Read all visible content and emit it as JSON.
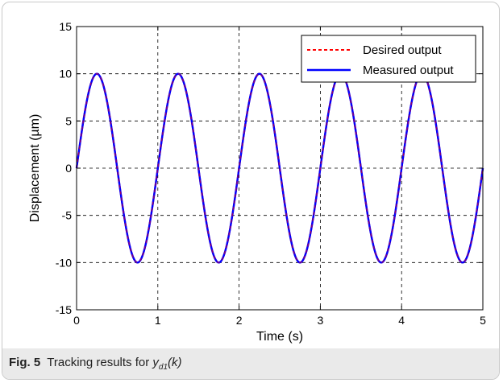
{
  "caption": {
    "fig_label": "Fig. 5",
    "text": "Tracking results for ",
    "var": "y",
    "var_sub": "d1",
    "var_arg": "(k)"
  },
  "chart_data": {
    "type": "line",
    "xlabel": "Time (s)",
    "ylabel": "Displacement (µm)",
    "xlim": [
      0,
      5
    ],
    "ylim": [
      -15,
      15
    ],
    "xticks": [
      0,
      1,
      2,
      3,
      4,
      5
    ],
    "yticks": [
      -15,
      -10,
      -5,
      0,
      5,
      10,
      15
    ],
    "grid": true,
    "legend_position": "top-right",
    "signal": {
      "amplitude": 10,
      "frequency_hz": 1,
      "phase": 0
    },
    "series": [
      {
        "name": "Desired output",
        "color": "#ff0000",
        "style": "dashed"
      },
      {
        "name": "Measured output",
        "color": "#0000ff",
        "style": "solid"
      }
    ]
  }
}
